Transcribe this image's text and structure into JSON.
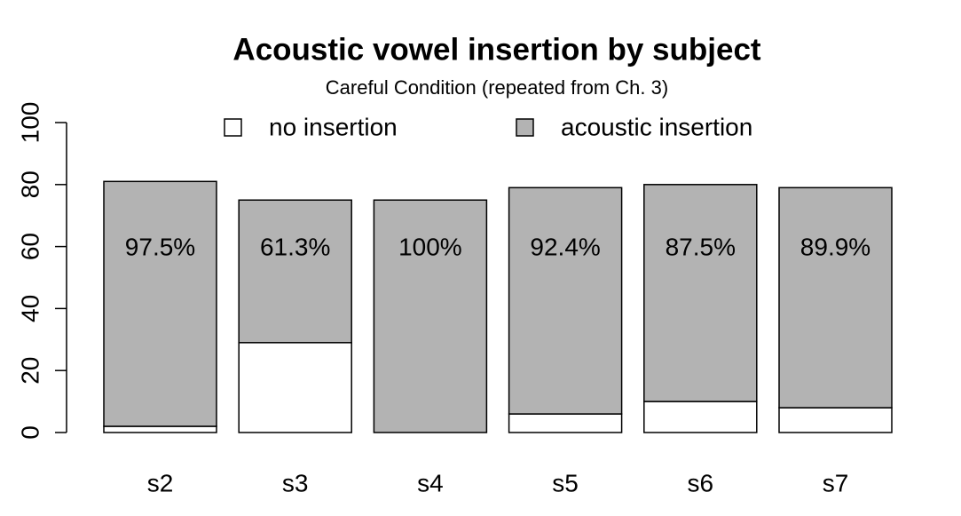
{
  "chart_data": {
    "type": "stacked_bar",
    "title": "Acoustic vowel insertion by subject",
    "subtitle": "Careful Condition (repeated from Ch. 3)",
    "categories": [
      "s2",
      "s3",
      "s4",
      "s5",
      "s6",
      "s7"
    ],
    "series": [
      {
        "name": "no insertion",
        "color": "#ffffff",
        "values": [
          2,
          29,
          0,
          6,
          10,
          8
        ]
      },
      {
        "name": "acoustic insertion",
        "color": "#b3b3b3",
        "values": [
          79,
          46,
          75,
          73,
          70,
          71
        ]
      }
    ],
    "annotations": [
      "97.5%",
      "61.3%",
      "100%",
      "92.4%",
      "87.5%",
      "89.9%"
    ],
    "ylim": [
      0,
      100
    ],
    "yticks": [
      0,
      20,
      40,
      60,
      80,
      100
    ],
    "legend": "top"
  }
}
